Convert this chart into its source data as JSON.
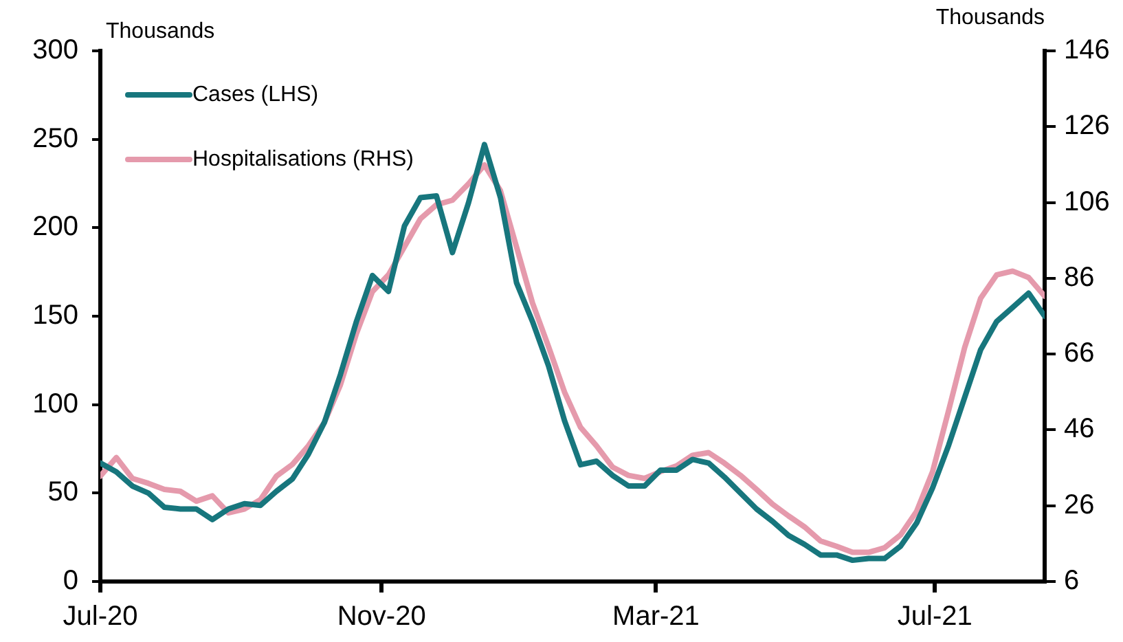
{
  "chart_data": {
    "type": "line",
    "ylabel": "Thousands",
    "y2label": "Thousands",
    "x": [
      "2020-07-01",
      "2020-07-08",
      "2020-07-15",
      "2020-07-22",
      "2020-07-29",
      "2020-08-05",
      "2020-08-12",
      "2020-08-19",
      "2020-08-26",
      "2020-09-02",
      "2020-09-09",
      "2020-09-16",
      "2020-09-23",
      "2020-09-30",
      "2020-10-07",
      "2020-10-14",
      "2020-10-21",
      "2020-10-28",
      "2020-11-04",
      "2020-11-11",
      "2020-11-18",
      "2020-11-25",
      "2020-12-02",
      "2020-12-09",
      "2020-12-16",
      "2020-12-23",
      "2020-12-30",
      "2021-01-06",
      "2021-01-13",
      "2021-01-20",
      "2021-01-27",
      "2021-02-03",
      "2021-02-10",
      "2021-02-17",
      "2021-02-24",
      "2021-03-03",
      "2021-03-10",
      "2021-03-17",
      "2021-03-24",
      "2021-03-31",
      "2021-04-07",
      "2021-04-14",
      "2021-04-21",
      "2021-04-28",
      "2021-05-05",
      "2021-05-12",
      "2021-05-19",
      "2021-05-26",
      "2021-06-02",
      "2021-06-09",
      "2021-06-16",
      "2021-06-23",
      "2021-06-30",
      "2021-07-07",
      "2021-07-14",
      "2021-07-21",
      "2021-07-28",
      "2021-08-04",
      "2021-08-11",
      "2021-08-18"
    ],
    "series": [
      {
        "name": "Cases (LHS)",
        "color": "#17767d",
        "values": [
          67,
          62,
          54,
          50,
          42,
          41,
          41,
          35,
          41,
          44,
          43,
          51,
          58,
          72,
          90,
          117,
          147,
          173,
          164,
          201,
          217,
          218,
          186,
          214,
          247,
          217,
          169,
          147,
          122,
          91,
          66,
          68,
          60,
          54,
          54,
          63,
          63,
          69,
          67,
          59,
          50,
          41,
          34,
          26,
          21,
          15,
          15,
          12,
          13,
          13,
          20,
          33,
          53,
          77,
          104,
          131,
          147,
          155,
          163,
          150
        ]
      },
      {
        "name": "Hospitalisations (RHS)",
        "color": "#e59aac",
        "axis": "y2",
        "values": [
          33.8,
          38.7,
          33.2,
          31.9,
          30.3,
          29.8,
          27.2,
          28.6,
          24.1,
          25.1,
          27.6,
          33.8,
          36.9,
          41.8,
          48,
          57.9,
          71.4,
          82.5,
          86.9,
          94.3,
          101.7,
          105.4,
          106.6,
          110.9,
          115.9,
          109.1,
          94.3,
          79.5,
          68,
          56,
          46.7,
          41.8,
          36.2,
          34,
          33.2,
          35,
          36.5,
          39.3,
          40,
          37.2,
          34,
          30.3,
          26.4,
          23.3,
          20.4,
          16.7,
          15.3,
          13.7,
          13.7,
          14.9,
          18.3,
          24.5,
          35,
          51.1,
          67.7,
          80.7,
          86.9,
          87.9,
          86.2,
          81.3
        ]
      }
    ],
    "xlim": [
      "2020-07-01",
      "2021-08-18"
    ],
    "xticks": [
      {
        "value": "2020-07-01",
        "label": "Jul-20"
      },
      {
        "value": "2020-11-01",
        "label": "Nov-20"
      },
      {
        "value": "2021-03-01",
        "label": "Mar-21"
      },
      {
        "value": "2021-07-01",
        "label": "Jul-21"
      }
    ],
    "ylim": [
      0,
      300
    ],
    "yticks": [
      0,
      50,
      100,
      150,
      200,
      250,
      300
    ],
    "y2lim": [
      6,
      146
    ],
    "y2ticks": [
      6,
      26,
      46,
      66,
      86,
      106,
      126,
      146
    ],
    "grid": false,
    "legend": "top left",
    "marker": "none",
    "line_style": "solid"
  }
}
